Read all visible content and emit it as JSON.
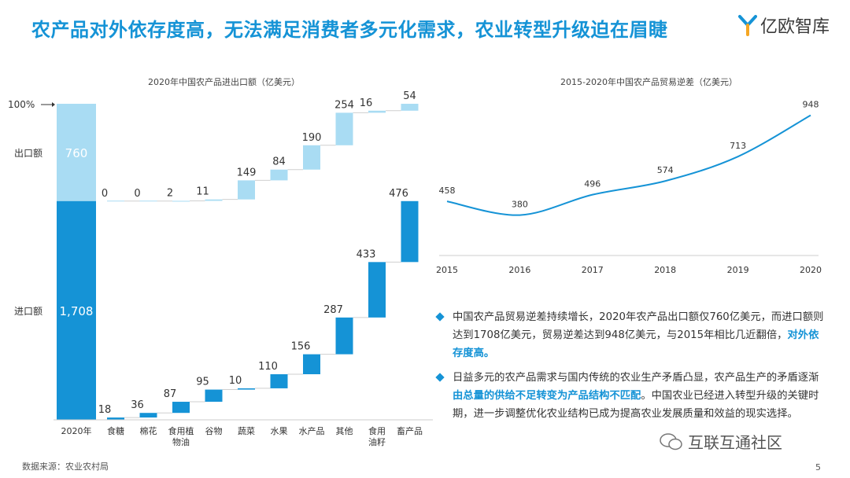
{
  "title": "农产品对外依存度高，无法满足消费者多元化需求，农业转型升级迫在眉睫",
  "logo": {
    "text": "亿欧智库"
  },
  "colors": {
    "accent": "#1593d6",
    "export": "#a9dcf3",
    "import": "#1593d6"
  },
  "chart_data": [
    {
      "type": "bar",
      "title": "2020年中国农产品进出口额（亿美元）",
      "total_label": "2020年",
      "scale_label": "100%",
      "export_label": "出口额",
      "import_label": "进口额",
      "export_total": 760,
      "import_total": 1708,
      "export_total_label": "760",
      "import_total_label": "1,708",
      "categories": [
        "食糖",
        "棉花",
        "食用植物油",
        "谷物",
        "蔬菜",
        "水果",
        "水产品",
        "其他",
        "食用油籽",
        "畜产品"
      ],
      "category_lines": [
        [
          "食糖"
        ],
        [
          "棉花"
        ],
        [
          "食用植",
          "物油"
        ],
        [
          "谷物"
        ],
        [
          "蔬菜"
        ],
        [
          "水果"
        ],
        [
          "水产品"
        ],
        [
          "其他"
        ],
        [
          "食用",
          "油籽"
        ],
        [
          "畜产品"
        ]
      ],
      "series": [
        {
          "name": "出口额",
          "values": [
            0,
            0,
            2,
            11,
            149,
            84,
            190,
            254,
            16,
            54
          ]
        },
        {
          "name": "进口额",
          "values": [
            18,
            36,
            87,
            95,
            10,
            110,
            156,
            287,
            433,
            476
          ]
        }
      ]
    },
    {
      "type": "line",
      "title": "2015-2020年中国农产品贸易逆差（亿美元）",
      "x": [
        2015,
        2016,
        2017,
        2018,
        2019,
        2020
      ],
      "x_labels": [
        "2015",
        "2016",
        "2017",
        "2018",
        "2019",
        "2020"
      ],
      "values": [
        458,
        380,
        496,
        574,
        713,
        948
      ],
      "value_labels": [
        "458",
        "380",
        "496",
        "574",
        "713",
        "948"
      ],
      "ylim": [
        150,
        1000
      ]
    }
  ],
  "bullets": [
    {
      "text1": "中国农产品贸易逆差持续增长，2020年农产品出口额仅760亿美元，而进口额则达到1708亿美元，贸易逆差达到948亿美元，与2015年相比几近翻倍，",
      "bold": "对外依存度高。",
      "text2": ""
    },
    {
      "text1": "日益多元的农产品需求与国内传统的农业生产矛盾凸显，农产品生产的矛盾逐渐",
      "bold": "由总量的供给不足转变为产品结构不匹配",
      "text2": "。中国农业已经进入转型升级的关键时期，进一步调整优化农业结构已成为提高农业发展质量和效益的现实选择。"
    }
  ],
  "source": "数据来源：农业农村局",
  "page_number": "5",
  "watermark": "互联互通社区"
}
